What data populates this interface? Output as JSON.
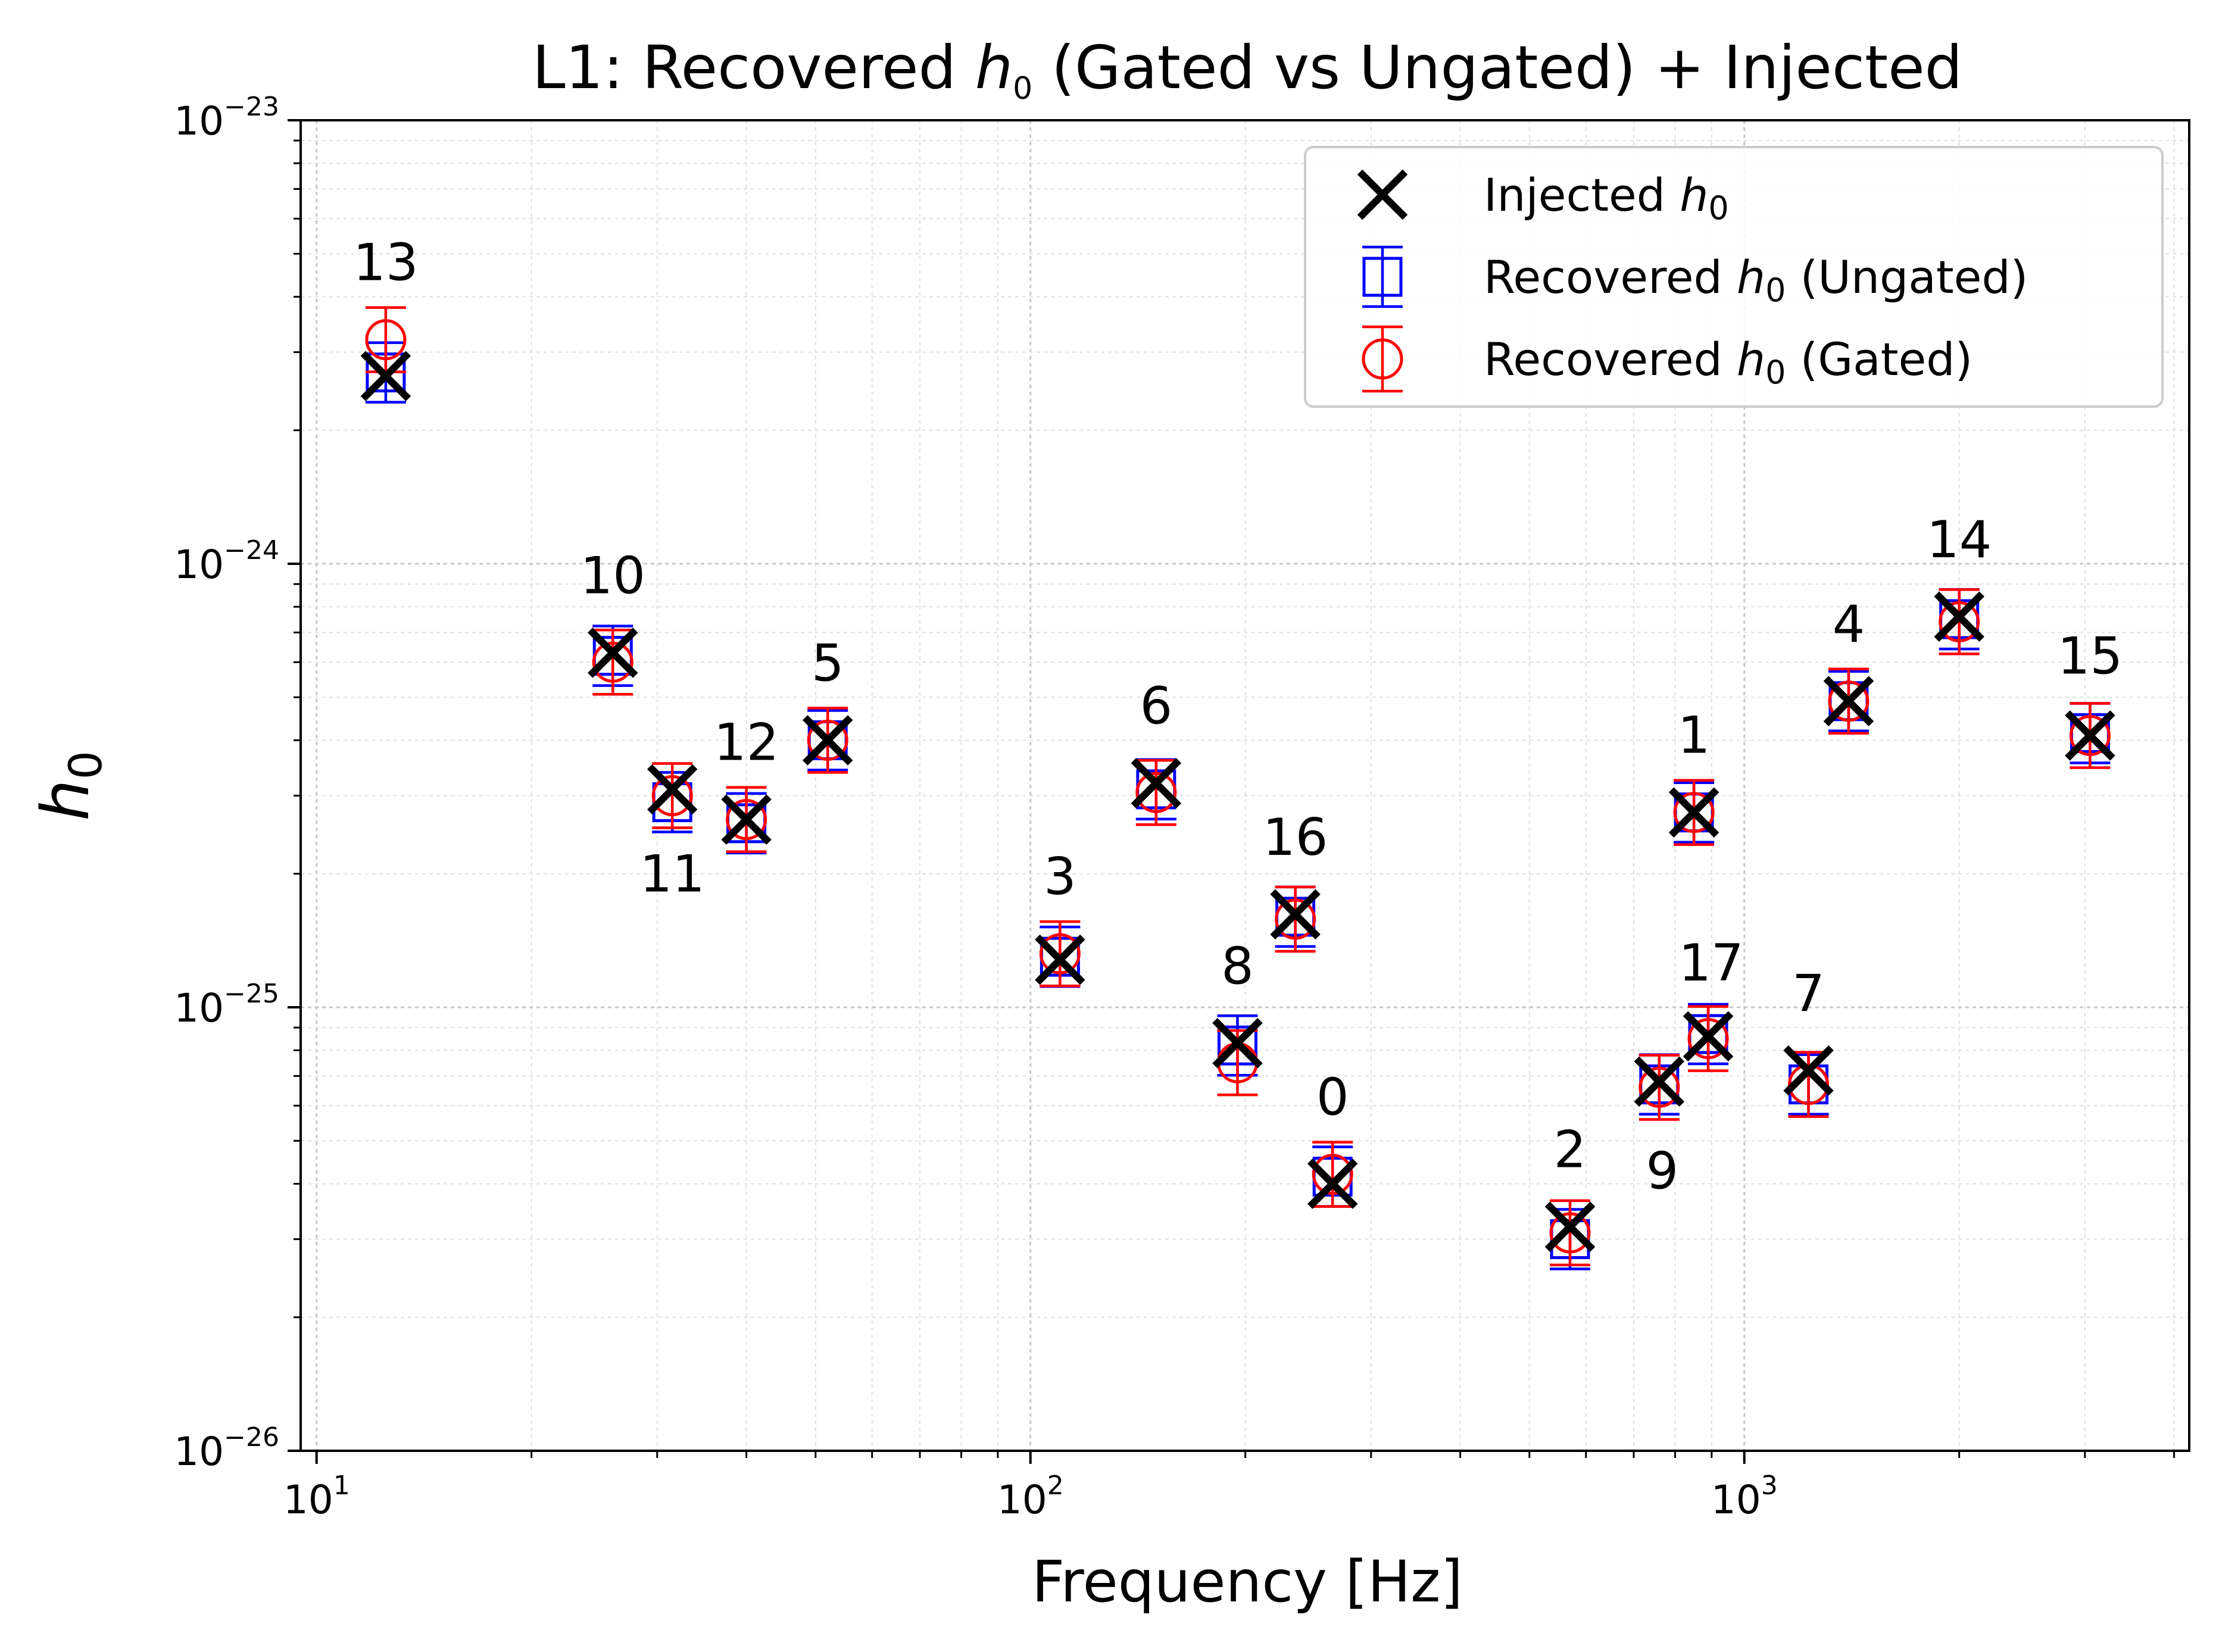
{
  "chart_data": {
    "type": "scatter",
    "title": "L1: Recovered h0 (Gated vs Ungated) + Injected",
    "title_parts": {
      "pre": "L1: Recovered ",
      "sym": "h",
      "sub": "0",
      "post": " (Gated vs Ungated) + Injected"
    },
    "xlabel": "Frequency [Hz]",
    "ylabel": {
      "sym": "h",
      "sub": "0"
    },
    "xscale": "log",
    "yscale": "log",
    "xlim": [
      9.5,
      4200
    ],
    "ylim": [
      1e-26,
      1e-23
    ],
    "grid": true,
    "legend_position": "top-right",
    "x_ticks": [
      {
        "value": 10,
        "base": "10",
        "exp": "1"
      },
      {
        "value": 100,
        "base": "10",
        "exp": "2"
      },
      {
        "value": 1000,
        "base": "10",
        "exp": "3"
      }
    ],
    "y_ticks": [
      {
        "value": 1e-26,
        "base": "10",
        "exp": "−26"
      },
      {
        "value": 1e-25,
        "base": "10",
        "exp": "−25"
      },
      {
        "value": 1e-24,
        "base": "10",
        "exp": "−24"
      },
      {
        "value": 1e-23,
        "base": "10",
        "exp": "−23"
      }
    ],
    "legend": [
      {
        "key": "injected",
        "pre": "Injected ",
        "sym": "h",
        "sub": "0",
        "post": ""
      },
      {
        "key": "ungated",
        "pre": "Recovered ",
        "sym": "h",
        "sub": "0",
        "post": " (Ungated)"
      },
      {
        "key": "gated",
        "pre": "Recovered ",
        "sym": "h",
        "sub": "0",
        "post": " (Gated)"
      }
    ],
    "colors": {
      "injected": "#000000",
      "ungated": "#0000ff",
      "gated": "#ff0000"
    },
    "points": [
      {
        "label": "0",
        "freq": 265,
        "injected": 4e-26,
        "ungated": 4.15e-26,
        "gated": 4.2e-26,
        "label_pos": "above"
      },
      {
        "label": "1",
        "freq": 850,
        "injected": 2.75e-25,
        "ungated": 2.75e-25,
        "gated": 2.75e-25,
        "label_pos": "above"
      },
      {
        "label": "2",
        "freq": 570,
        "injected": 3.2e-26,
        "ungated": 3e-26,
        "gated": 3.1e-26,
        "label_pos": "above"
      },
      {
        "label": "3",
        "freq": 110,
        "injected": 1.28e-25,
        "ungated": 1.3e-25,
        "gated": 1.32e-25,
        "label_pos": "above"
      },
      {
        "label": "4",
        "freq": 1400,
        "injected": 4.9e-25,
        "ungated": 4.9e-25,
        "gated": 4.9e-25,
        "label_pos": "above"
      },
      {
        "label": "5",
        "freq": 52,
        "injected": 4e-25,
        "ungated": 4e-25,
        "gated": 4e-25,
        "label_pos": "above"
      },
      {
        "label": "6",
        "freq": 150,
        "injected": 3.2e-25,
        "ungated": 3.1e-25,
        "gated": 3.05e-25,
        "label_pos": "above"
      },
      {
        "label": "7",
        "freq": 1230,
        "injected": 7.2e-26,
        "ungated": 6.7e-26,
        "gated": 6.7e-26,
        "label_pos": "above"
      },
      {
        "label": "8",
        "freq": 195,
        "injected": 8.3e-26,
        "ungated": 8.2e-26,
        "gated": 7.5e-26,
        "label_pos": "above"
      },
      {
        "label": "9",
        "freq": 760,
        "injected": 6.8e-26,
        "ungated": 6.7e-26,
        "gated": 6.6e-26,
        "label_pos": "below-right"
      },
      {
        "label": "10",
        "freq": 26,
        "injected": 6.3e-25,
        "ungated": 6.2e-25,
        "gated": 6e-25,
        "label_pos": "above"
      },
      {
        "label": "11",
        "freq": 31.5,
        "injected": 3.1e-25,
        "ungated": 2.9e-25,
        "gated": 3e-25,
        "label_pos": "below"
      },
      {
        "label": "12",
        "freq": 40,
        "injected": 2.65e-25,
        "ungated": 2.6e-25,
        "gated": 2.65e-25,
        "label_pos": "above"
      },
      {
        "label": "13",
        "freq": 12.5,
        "injected": 2.65e-24,
        "ungated": 2.7e-24,
        "gated": 3.2e-24,
        "label_pos": "above"
      },
      {
        "label": "14",
        "freq": 2000,
        "injected": 7.6e-25,
        "ungated": 7.5e-25,
        "gated": 7.4e-25,
        "label_pos": "above"
      },
      {
        "label": "15",
        "freq": 3050,
        "injected": 4.1e-25,
        "ungated": 4.15e-25,
        "gated": 4.1e-25,
        "label_pos": "above"
      },
      {
        "label": "16",
        "freq": 235,
        "injected": 1.62e-25,
        "ungated": 1.6e-25,
        "gated": 1.58e-25,
        "label_pos": "above"
      },
      {
        "label": "17",
        "freq": 890,
        "injected": 8.6e-26,
        "ungated": 8.7e-26,
        "gated": 8.5e-26,
        "label_pos": "above-right"
      }
    ]
  }
}
